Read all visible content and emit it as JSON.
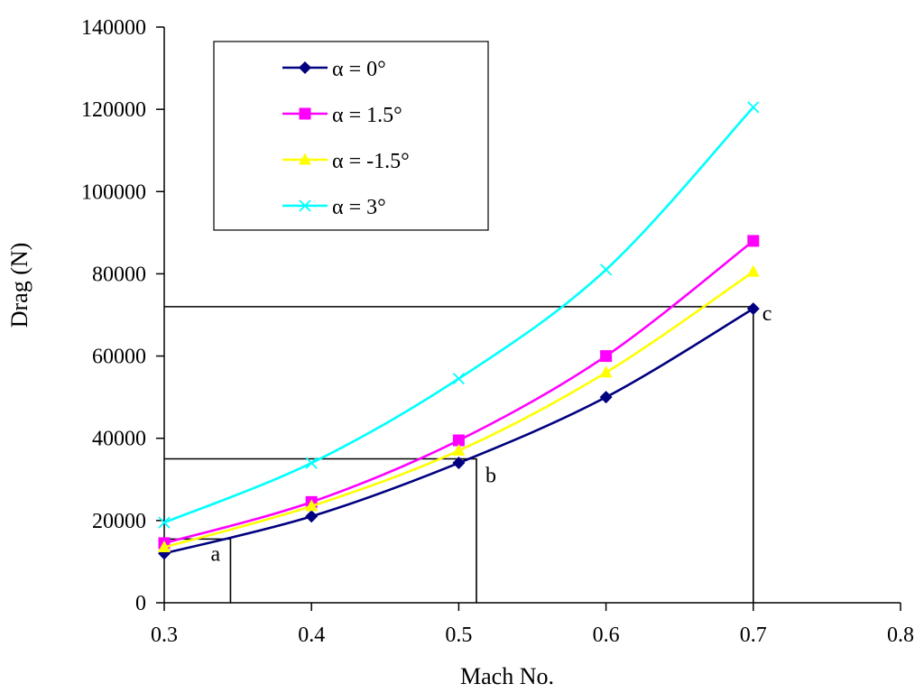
{
  "chart_data": {
    "type": "line",
    "title": "",
    "xlabel": "Mach No.",
    "ylabel": "Drag (N)",
    "xlim": [
      0.3,
      0.8
    ],
    "ylim": [
      0,
      140000
    ],
    "xticks": [
      0.3,
      0.4,
      0.5,
      0.6,
      0.7,
      0.8
    ],
    "yticks": [
      0,
      20000,
      40000,
      60000,
      80000,
      100000,
      120000,
      140000
    ],
    "xtick_labels": [
      "0.3",
      "0.4",
      "0.5",
      "0.6",
      "0.7",
      "0.8"
    ],
    "ytick_labels": [
      "0",
      "20000",
      "40000",
      "60000",
      "80000",
      "100000",
      "120000",
      "140000"
    ],
    "grid": false,
    "legend_position": "top-left",
    "x": [
      0.3,
      0.4,
      0.5,
      0.6,
      0.7
    ],
    "series": [
      {
        "name": "α = 0°",
        "marker": "diamond",
        "color": "#000080",
        "values": [
          12000,
          21000,
          34000,
          50000,
          71500
        ]
      },
      {
        "name": "α = 1.5°",
        "marker": "square",
        "color": "#ff00ff",
        "values": [
          14500,
          24500,
          39500,
          60000,
          88000
        ]
      },
      {
        "name": "α = -1.5°",
        "marker": "triangle",
        "color": "#ffff00",
        "values": [
          13500,
          23500,
          37000,
          56000,
          80500
        ]
      },
      {
        "name": "α = 3°",
        "marker": "x",
        "color": "#00ffff",
        "values": [
          19500,
          34000,
          54500,
          81000,
          120500
        ]
      }
    ],
    "annotations": [
      {
        "label": "a",
        "x": 0.345,
        "y": 15500
      },
      {
        "label": "b",
        "x": 0.512,
        "y": 35000
      },
      {
        "label": "c",
        "x": 0.7,
        "y": 72000
      }
    ]
  }
}
